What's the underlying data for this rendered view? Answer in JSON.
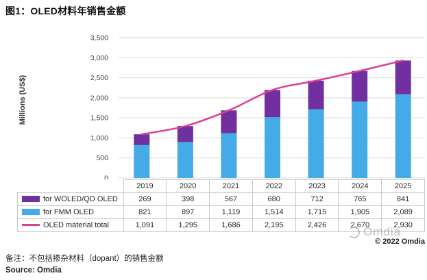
{
  "title": "图1：OLED材料年销售金额",
  "watermark": {
    "logo_text": "Omdia",
    "copyright": "© 2022 Omdia"
  },
  "footer": {
    "note": "备注：不包括掺杂材料（dopant）的销售金额",
    "source": "Source: Omdia"
  },
  "colors": {
    "fmm_blue": "#45AAE8",
    "woled_purple": "#7030A0",
    "total_pink": "#D9418F",
    "gridline": "#D9D9D9",
    "table_border": "#C9C9C9",
    "tick_text": "#404040"
  },
  "chart_data": {
    "type": "stacked-bar-with-line",
    "title": "图1：OLED材料年销售金额",
    "categories": [
      "2019",
      "2020",
      "2021",
      "2022",
      "2023",
      "2024",
      "2025"
    ],
    "series": [
      {
        "name": "for WOLED/QD OLED",
        "role": "bar",
        "stack_index": 1,
        "color_key": "woled_purple",
        "values": [
          269,
          398,
          567,
          680,
          712,
          765,
          841
        ]
      },
      {
        "name": "for FMM OLED",
        "role": "bar",
        "stack_index": 0,
        "color_key": "fmm_blue",
        "values": [
          821,
          897,
          1119,
          1514,
          1715,
          1905,
          2089
        ]
      },
      {
        "name": "OLED material total",
        "role": "line",
        "color_key": "total_pink",
        "values": [
          1091,
          1295,
          1686,
          2195,
          2426,
          2670,
          2930
        ]
      }
    ],
    "xlabel": "",
    "ylabel": "Millions (US$)",
    "ylim": [
      0,
      3500
    ],
    "ytick_step": 500,
    "grid": true,
    "legend_position": "table-left-column"
  }
}
